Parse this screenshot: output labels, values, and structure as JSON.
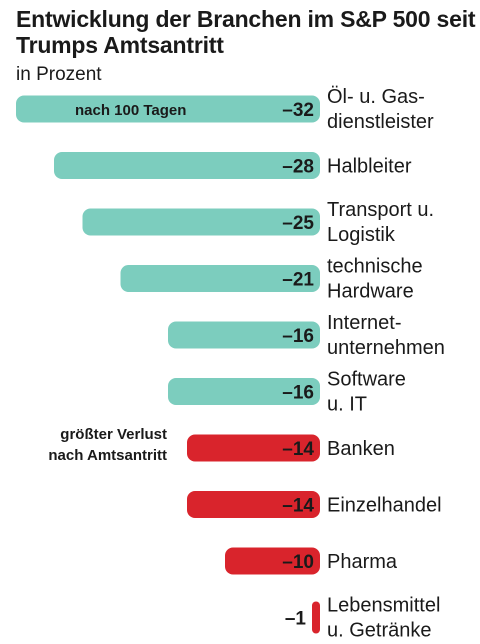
{
  "title": "Entwicklung der Branchen im S&P 500 seit Trumps Amtsantritt",
  "subtitle": "in Prozent",
  "colors": {
    "teal": "#7ccdbe",
    "red": "#d9242c",
    "text": "#1a1a1a"
  },
  "chart_data": {
    "type": "bar",
    "orientation": "horizontal",
    "title": "Entwicklung der Branchen im S&P 500 seit Trumps Amtsantritt",
    "subtitle": "in Prozent",
    "categories": [
      [
        "Öl- u. Gas-",
        "dienstleister"
      ],
      [
        "Halbleiter"
      ],
      [
        "Transport u.",
        "Logistik"
      ],
      [
        "technische",
        "Hardware"
      ],
      [
        "Internet-",
        "unternehmen"
      ],
      [
        "Software",
        "u. IT"
      ],
      [
        "Banken"
      ],
      [
        "Einzelhandel"
      ],
      [
        "Pharma"
      ],
      [
        "Lebensmittel",
        "u. Getränke"
      ]
    ],
    "values": [
      -32,
      -28,
      -25,
      -21,
      -16,
      -16,
      -14,
      -14,
      -10,
      -1
    ],
    "labels": [
      "–32",
      "–28",
      "–25",
      "–21",
      "–16",
      "–16",
      "–14",
      "–14",
      "–10",
      "–1"
    ],
    "groups": [
      "teal",
      "teal",
      "teal",
      "teal",
      "teal",
      "teal",
      "red",
      "red",
      "red",
      "red"
    ],
    "annotations": {
      "teal": "nach 100 Tagen",
      "red": [
        "größter Verlust",
        "nach Amtsantritt"
      ]
    }
  }
}
